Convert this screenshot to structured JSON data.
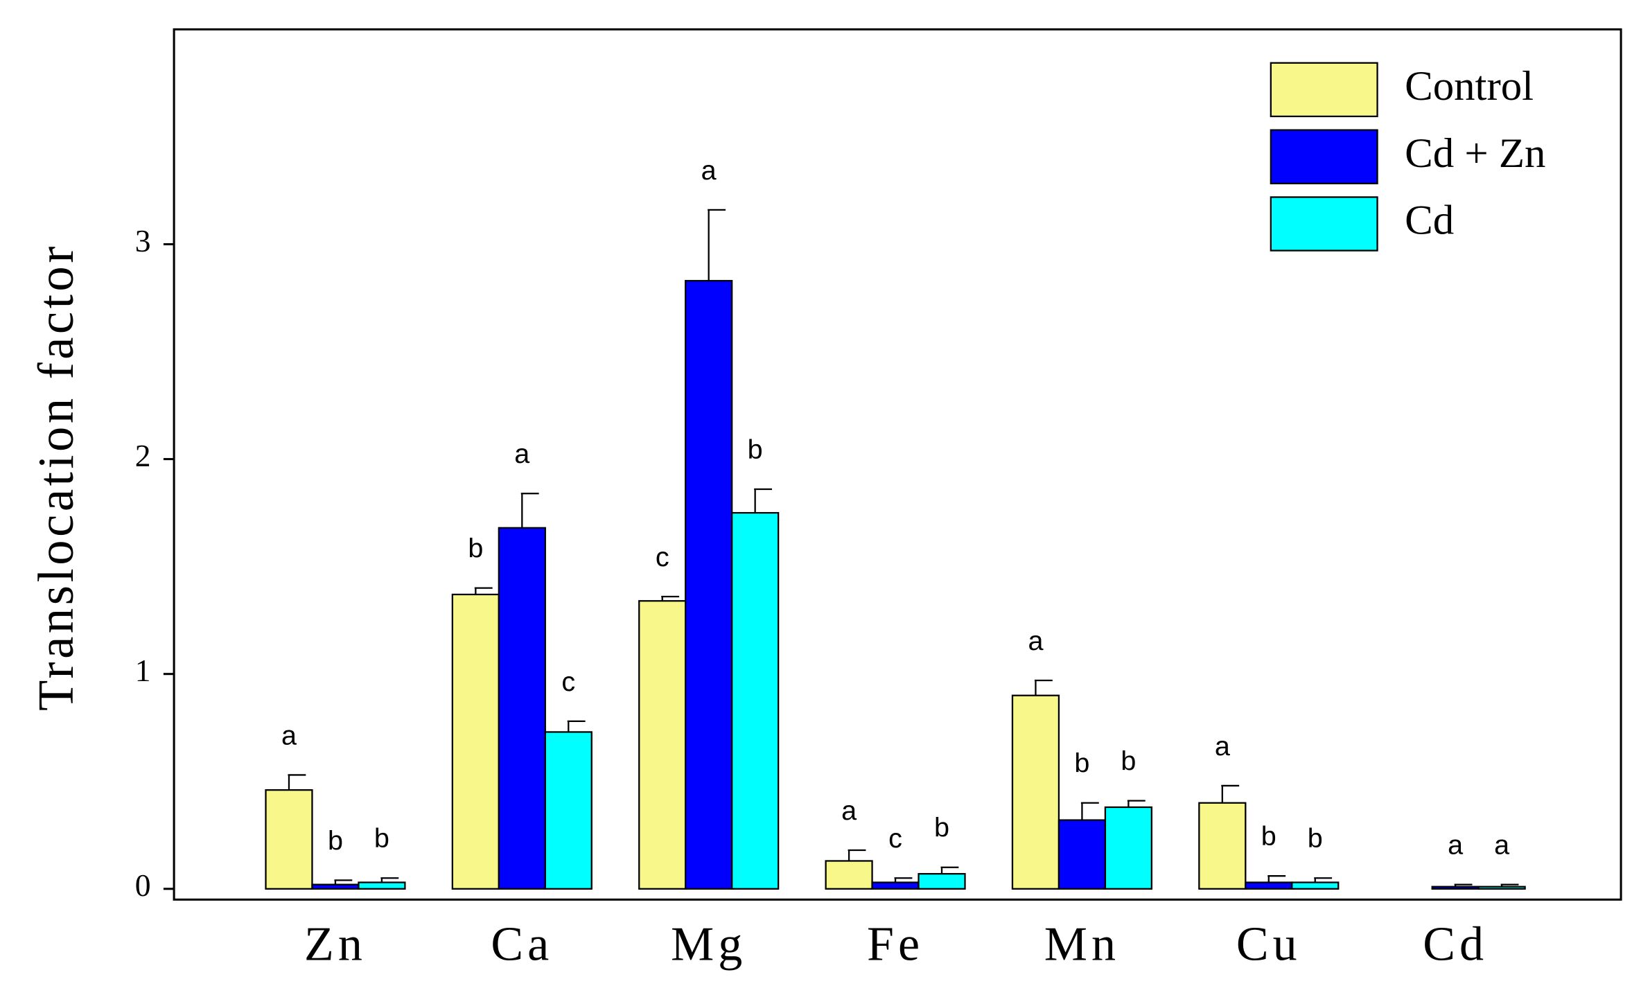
{
  "chart_data": {
    "type": "bar",
    "y_label": "Translocation factor",
    "categories": [
      "Zn",
      "Ca",
      "Mg",
      "Fe",
      "Mn",
      "Cu",
      "Cd"
    ],
    "series": [
      {
        "name": "Control",
        "color": "#f7f78a",
        "values": [
          0.46,
          1.37,
          1.34,
          0.13,
          0.9,
          0.4,
          null
        ],
        "errors": [
          0.07,
          0.03,
          0.02,
          0.05,
          0.07,
          0.08,
          null
        ],
        "letters": [
          "a",
          "b",
          "c",
          "a",
          "a",
          "a",
          null
        ]
      },
      {
        "name": "Cd + Zn",
        "color": "#0000ff",
        "values": [
          0.02,
          1.68,
          2.83,
          0.03,
          0.32,
          0.03,
          0.01
        ],
        "errors": [
          0.02,
          0.16,
          0.33,
          0.02,
          0.08,
          0.03,
          0.01
        ],
        "letters": [
          "b",
          "a",
          "a",
          "c",
          "b",
          "b",
          "a"
        ]
      },
      {
        "name": "Cd",
        "color": "#00ffff",
        "values": [
          0.03,
          0.73,
          1.75,
          0.07,
          0.38,
          0.03,
          0.01
        ],
        "errors": [
          0.02,
          0.05,
          0.11,
          0.03,
          0.03,
          0.02,
          0.01
        ],
        "letters": [
          "b",
          "c",
          "b",
          "b",
          "b",
          "b",
          "a"
        ]
      }
    ],
    "ylim": [
      -0.05,
      4.0
    ],
    "yticks": [
      0,
      1,
      2,
      3
    ],
    "legend": "upper right",
    "grid": false
  }
}
